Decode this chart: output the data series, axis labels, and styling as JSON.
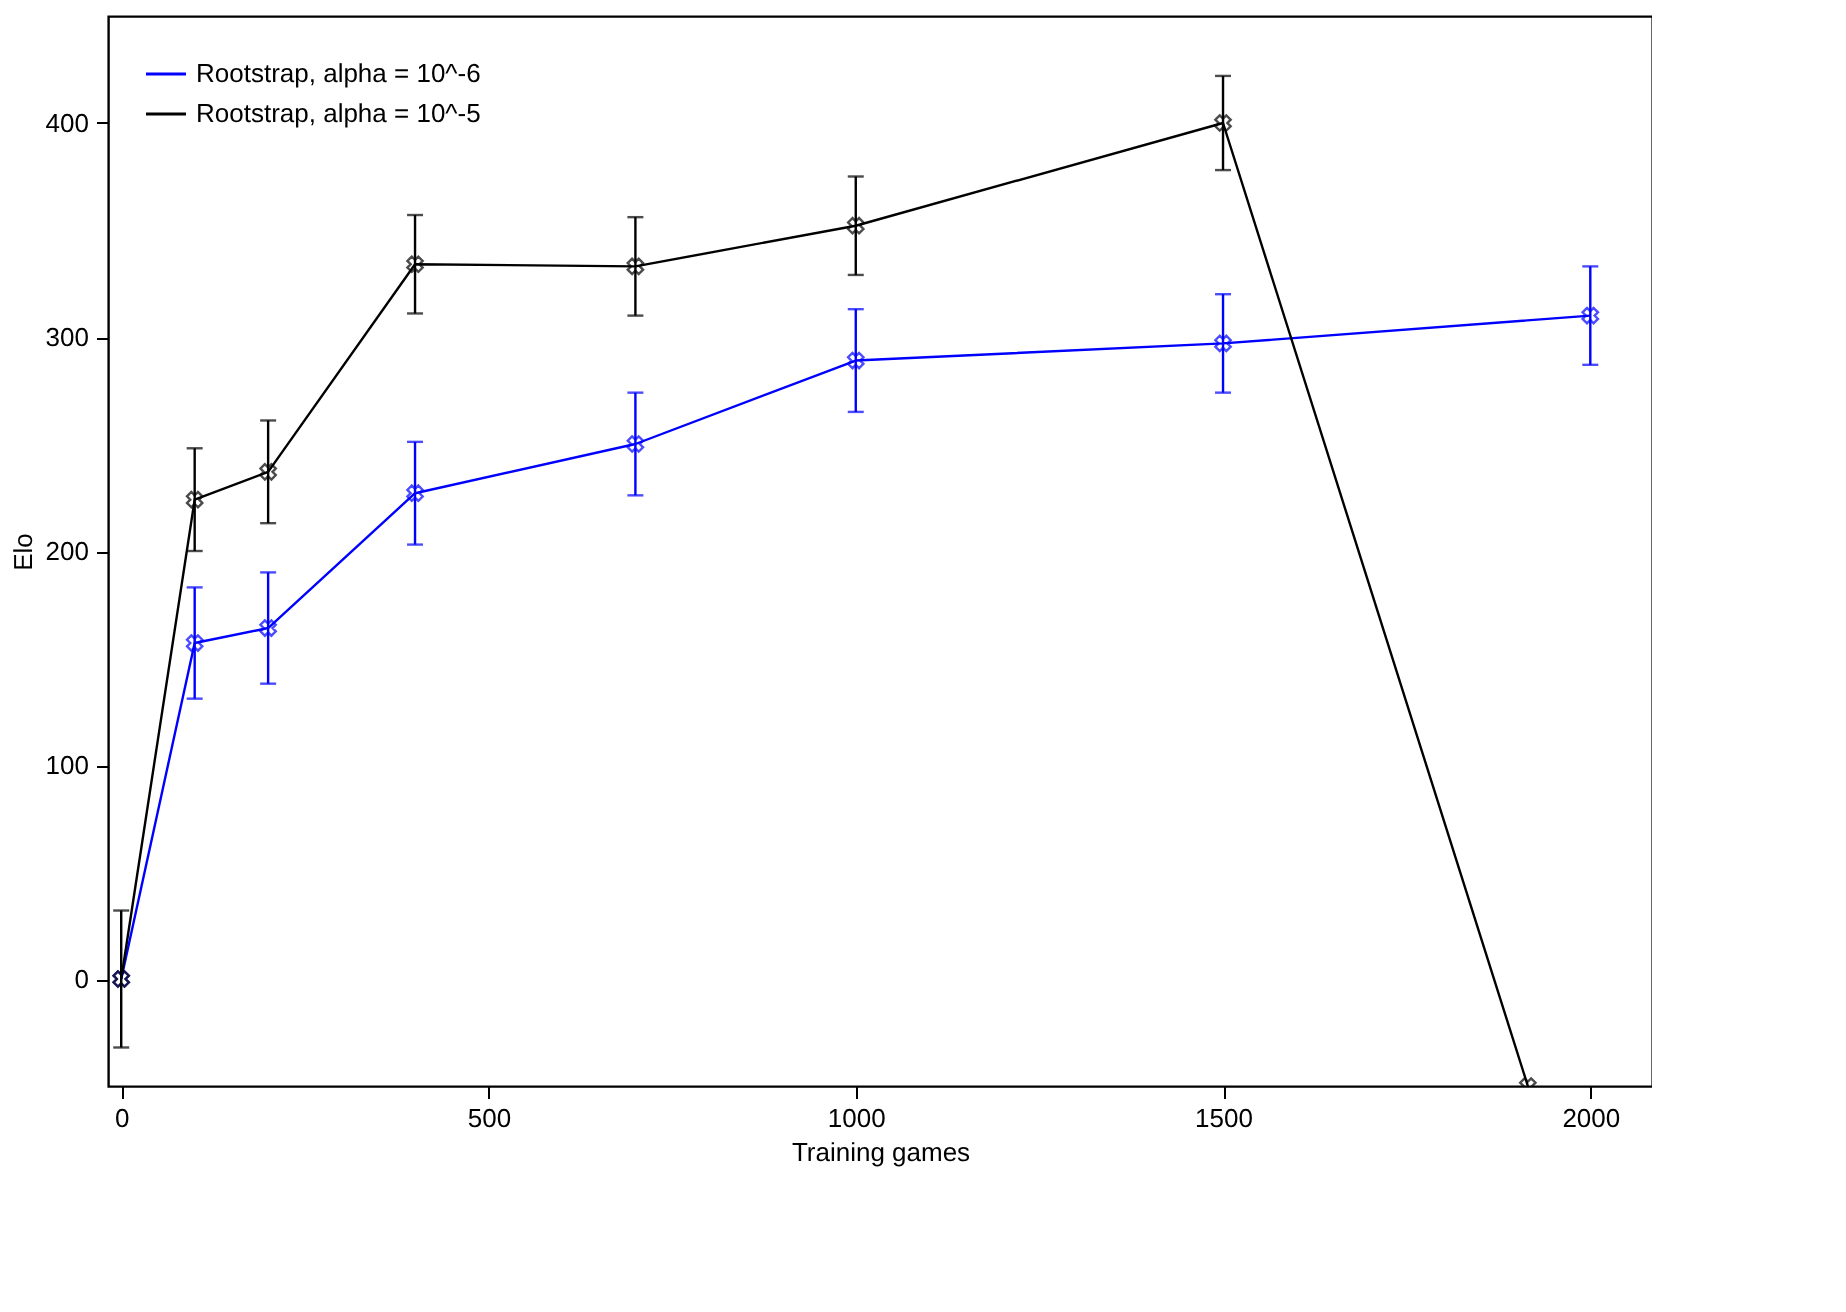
{
  "chart_data": {
    "type": "line",
    "xlabel": "Training games",
    "ylabel": "Elo",
    "x": [
      0,
      100,
      200,
      400,
      700,
      1000,
      1500,
      2000
    ],
    "series": [
      {
        "name": "Rootstrap, alpha = 10^-6",
        "color": "#0000ff",
        "values": [
          0,
          157,
          164,
          227,
          250,
          289,
          297,
          310
        ],
        "errors": [
          null,
          26,
          26,
          24,
          24,
          24,
          23,
          23
        ]
      },
      {
        "name": "Rootstrap, alpha = 10^-5",
        "color": "#000000",
        "x": [
          0,
          100,
          200,
          400,
          700,
          1000,
          1500,
          1915
        ],
        "values": [
          0,
          224,
          237,
          334,
          333,
          352,
          400,
          -50
        ],
        "errors": [
          32,
          24,
          24,
          23,
          23,
          23,
          22,
          null
        ]
      }
    ],
    "xlim": [
      -18,
      2084
    ],
    "ylim": [
      -50,
      450
    ],
    "xticks": [
      0,
      500,
      1000,
      1500,
      2000
    ],
    "yticks": [
      0,
      100,
      200,
      300,
      400
    ],
    "marker": "cross",
    "line_style": "solid",
    "grid": false,
    "legend": "top left"
  }
}
